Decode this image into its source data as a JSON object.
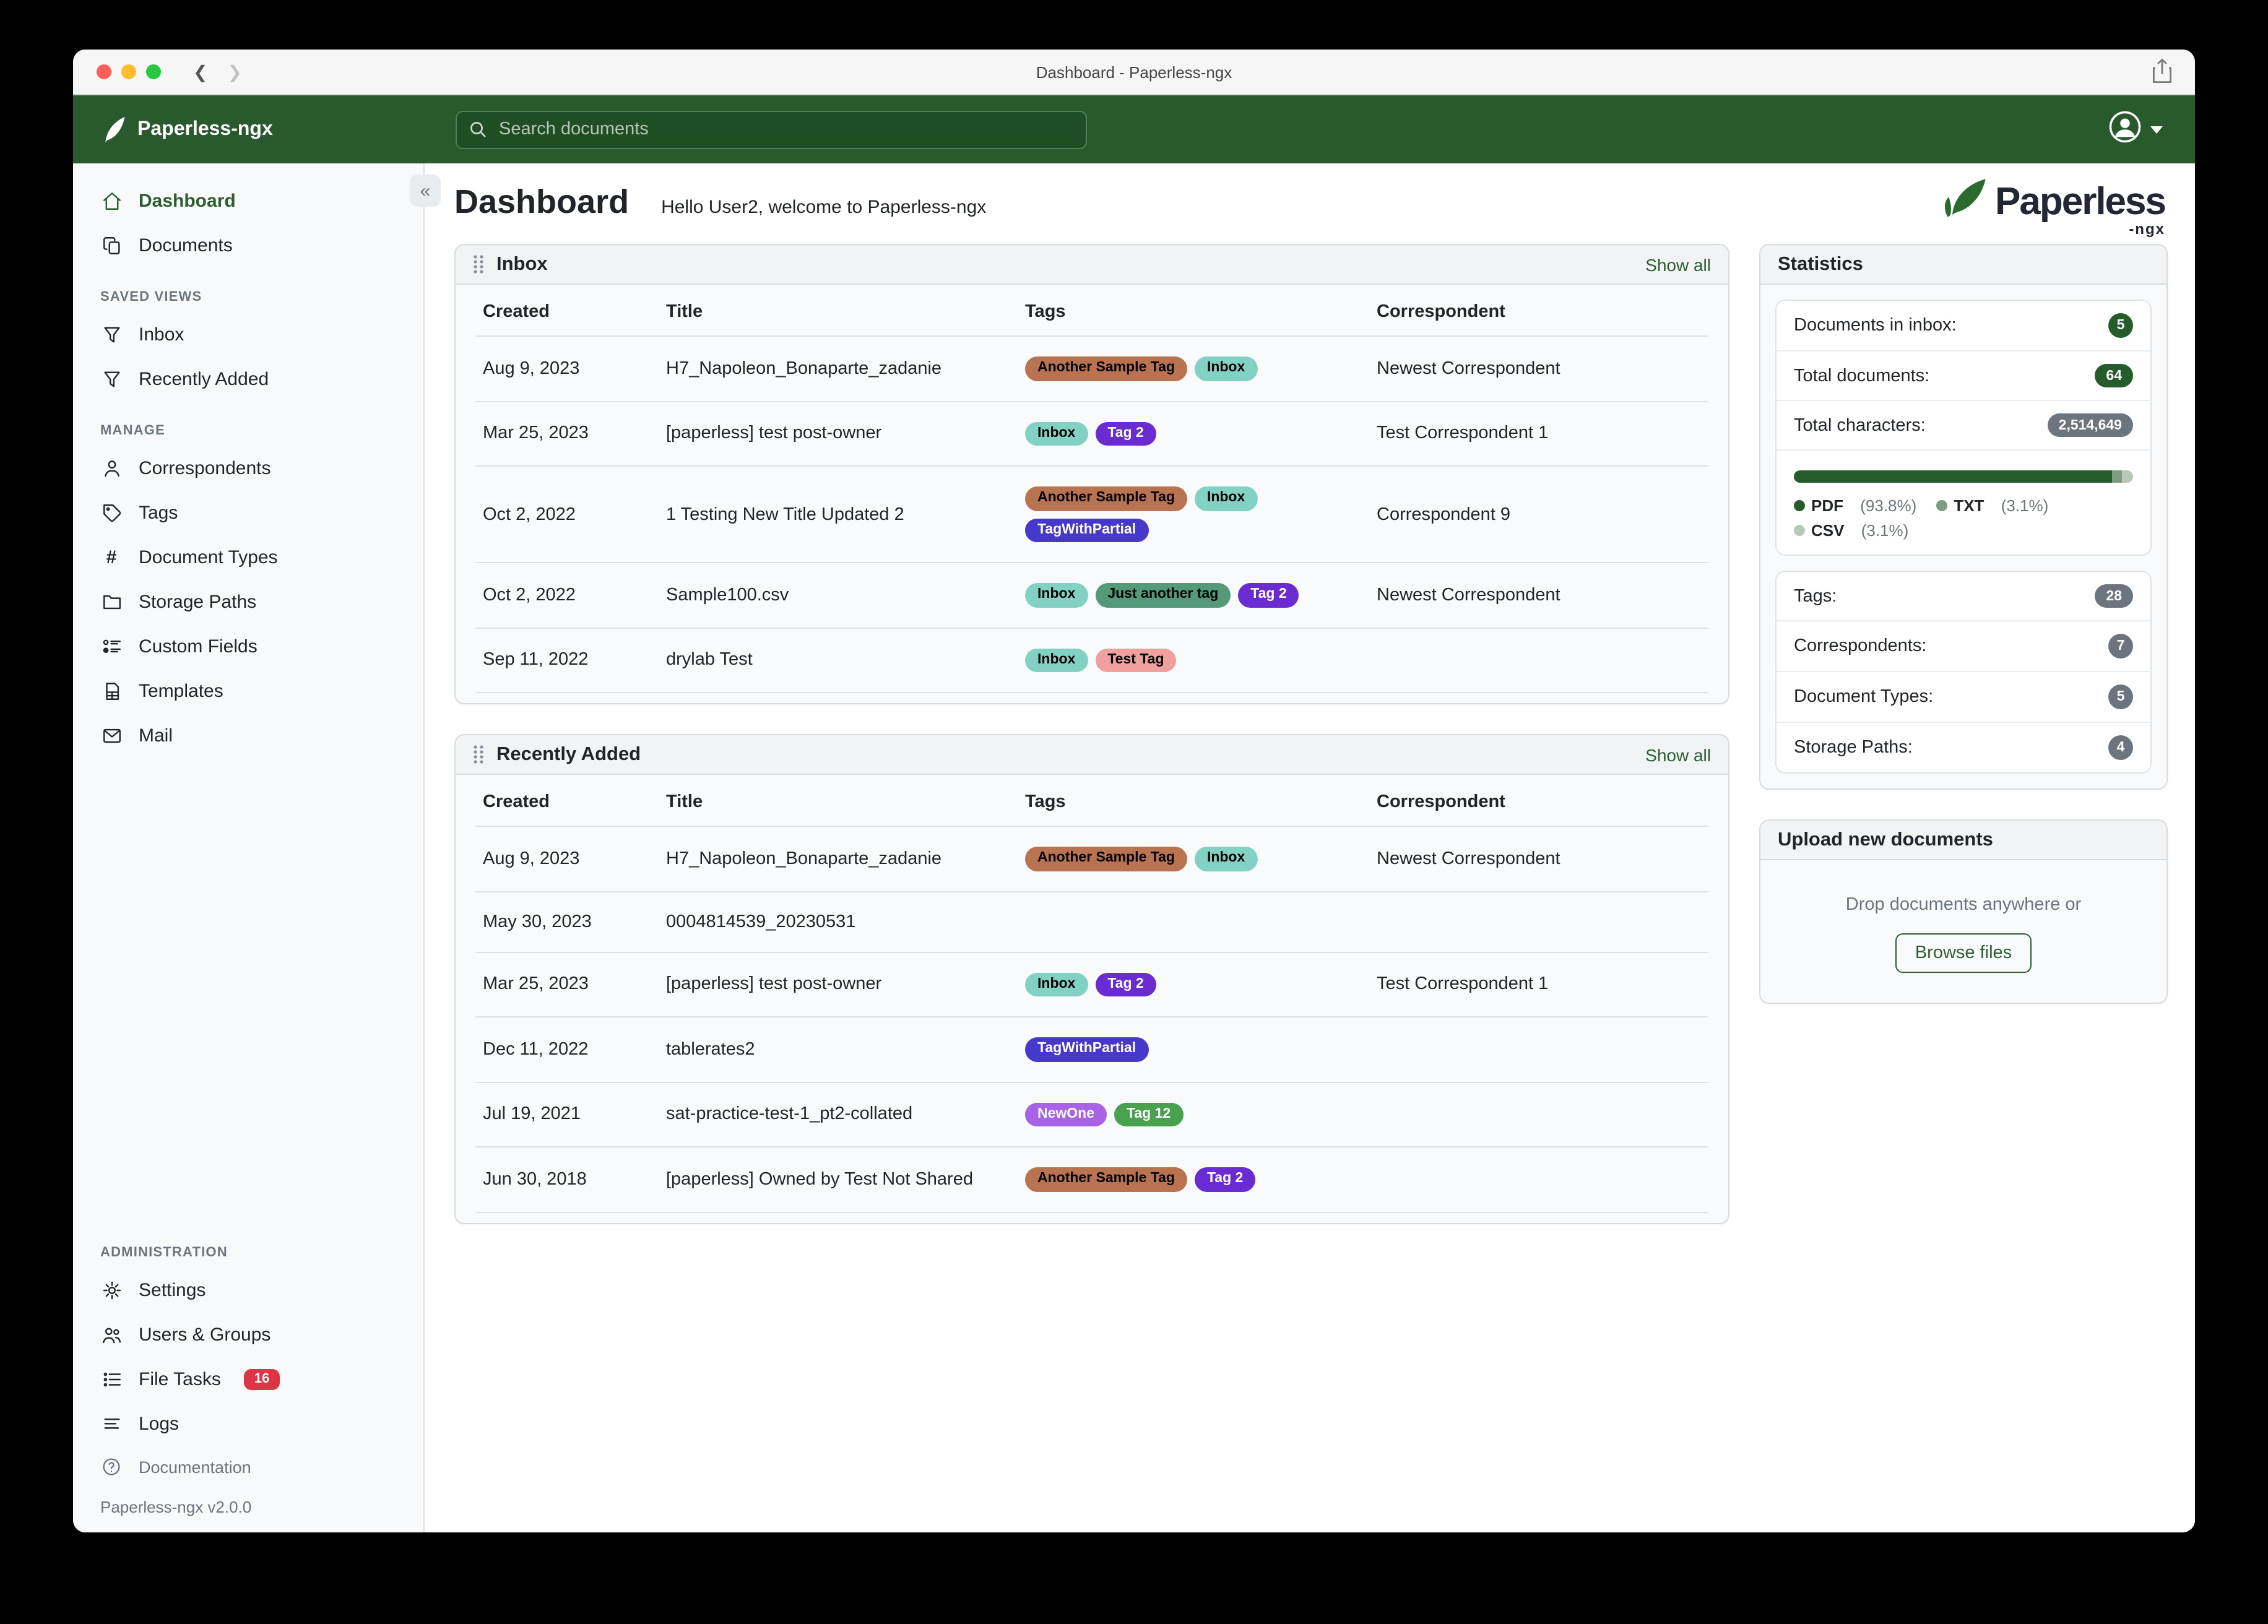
{
  "theme": {
    "navbar_green": "#285a2d",
    "accent": "#2c5e2e",
    "badge_green": "#265c2b",
    "badge_gray": "#6c757d",
    "badge_red": "#dc3545"
  },
  "window": {
    "title": "Dashboard - Paperless-ngx"
  },
  "navbar": {
    "brand": "Paperless-ngx",
    "search_placeholder": "Search documents"
  },
  "sidebar": {
    "primary": [
      {
        "label": "Dashboard",
        "icon": "home-icon",
        "active": true
      },
      {
        "label": "Documents",
        "icon": "documents-icon",
        "active": false
      }
    ],
    "sections": [
      {
        "label": "SAVED VIEWS",
        "push_bottom": false,
        "items": [
          {
            "label": "Inbox",
            "icon": "filter-icon"
          },
          {
            "label": "Recently Added",
            "icon": "filter-icon"
          }
        ]
      },
      {
        "label": "MANAGE",
        "push_bottom": false,
        "items": [
          {
            "label": "Correspondents",
            "icon": "person-icon"
          },
          {
            "label": "Tags",
            "icon": "tag-icon"
          },
          {
            "label": "Document Types",
            "icon": "hash-icon"
          },
          {
            "label": "Storage Paths",
            "icon": "folder-icon"
          },
          {
            "label": "Custom Fields",
            "icon": "custom-fields-icon"
          },
          {
            "label": "Templates",
            "icon": "template-icon"
          },
          {
            "label": "Mail",
            "icon": "mail-icon"
          }
        ]
      },
      {
        "label": "ADMINISTRATION",
        "push_bottom": true,
        "items": [
          {
            "label": "Settings",
            "icon": "gear-icon"
          },
          {
            "label": "Users & Groups",
            "icon": "users-icon"
          },
          {
            "label": "File Tasks",
            "icon": "tasks-icon",
            "badge": "16"
          },
          {
            "label": "Logs",
            "icon": "logs-icon"
          }
        ]
      }
    ],
    "footer": {
      "documentation": "Documentation",
      "version": "Paperless-ngx v2.0.0"
    }
  },
  "page": {
    "title": "Dashboard",
    "greeting": "Hello User2, welcome to Paperless-ngx",
    "logo_word": "Paperless",
    "logo_sub": "-ngx"
  },
  "tag_styles": {
    "Another Sample Tag": {
      "bg": "#b97350",
      "fg": "#000000"
    },
    "Inbox": {
      "bg": "#82d1c5",
      "fg": "#000000"
    },
    "Tag 2": {
      "bg": "#6b2bd2",
      "fg": "#ffffff"
    },
    "TagWithPartial": {
      "bg": "#4538ca",
      "fg": "#ffffff"
    },
    "Just another tag": {
      "bg": "#53997a",
      "fg": "#000000"
    },
    "Test Tag": {
      "bg": "#efa09f",
      "fg": "#000000"
    },
    "NewOne": {
      "bg": "#a763e6",
      "fg": "#ffffff"
    },
    "Tag 12": {
      "bg": "#48a14d",
      "fg": "#ffffff"
    }
  },
  "inbox_card": {
    "title": "Inbox",
    "show_all": "Show all",
    "columns": [
      "Created",
      "Title",
      "Tags",
      "Correspondent"
    ],
    "rows": [
      {
        "created": "Aug 9, 2023",
        "title": "H7_Napoleon_Bonaparte_zadanie",
        "tags": [
          "Another Sample Tag",
          "Inbox"
        ],
        "correspondent": "Newest Correspondent"
      },
      {
        "created": "Mar 25, 2023",
        "title": "[paperless] test post-owner",
        "tags": [
          "Inbox",
          "Tag 2"
        ],
        "correspondent": "Test Correspondent 1"
      },
      {
        "created": "Oct 2, 2022",
        "title": "1 Testing New Title Updated 2",
        "tags": [
          "Another Sample Tag",
          "Inbox",
          "TagWithPartial"
        ],
        "correspondent": "Correspondent 9"
      },
      {
        "created": "Oct 2, 2022",
        "title": "Sample100.csv",
        "tags": [
          "Inbox",
          "Just another tag",
          "Tag 2"
        ],
        "correspondent": "Newest Correspondent"
      },
      {
        "created": "Sep 11, 2022",
        "title": "drylab Test",
        "tags": [
          "Inbox",
          "Test Tag"
        ],
        "correspondent": ""
      }
    ]
  },
  "recent_card": {
    "title": "Recently Added",
    "show_all": "Show all",
    "columns": [
      "Created",
      "Title",
      "Tags",
      "Correspondent"
    ],
    "rows": [
      {
        "created": "Aug 9, 2023",
        "title": "H7_Napoleon_Bonaparte_zadanie",
        "tags": [
          "Another Sample Tag",
          "Inbox"
        ],
        "correspondent": "Newest Correspondent"
      },
      {
        "created": "May 30, 2023",
        "title": "0004814539_20230531",
        "tags": [],
        "correspondent": ""
      },
      {
        "created": "Mar 25, 2023",
        "title": "[paperless] test post-owner",
        "tags": [
          "Inbox",
          "Tag 2"
        ],
        "correspondent": "Test Correspondent 1"
      },
      {
        "created": "Dec 11, 2022",
        "title": "tablerates2",
        "tags": [
          "TagWithPartial"
        ],
        "correspondent": ""
      },
      {
        "created": "Jul 19, 2021",
        "title": "sat-practice-test-1_pt2-collated",
        "tags": [
          "NewOne",
          "Tag 12"
        ],
        "correspondent": ""
      },
      {
        "created": "Jun 30, 2018",
        "title": "[paperless] Owned by Test Not Shared",
        "tags": [
          "Another Sample Tag",
          "Tag 2"
        ],
        "correspondent": ""
      }
    ]
  },
  "stats": {
    "title": "Statistics",
    "groups": [
      {
        "chart": true,
        "items": [
          {
            "label": "Documents in inbox:",
            "value": "5",
            "badge": "green"
          },
          {
            "label": "Total documents:",
            "value": "64",
            "badge": "green"
          },
          {
            "label": "Total characters:",
            "value": "2,514,649",
            "badge": "gray"
          }
        ]
      },
      {
        "chart": false,
        "items": [
          {
            "label": "Tags:",
            "value": "28",
            "badge": "gray"
          },
          {
            "label": "Correspondents:",
            "value": "7",
            "badge": "gray"
          },
          {
            "label": "Document Types:",
            "value": "5",
            "badge": "gray"
          },
          {
            "label": "Storage Paths:",
            "value": "4",
            "badge": "gray"
          }
        ]
      }
    ],
    "chart": {
      "type": "bar",
      "segments": [
        {
          "label": "PDF",
          "pct": "93.8%",
          "value": 93.8,
          "color": "#265c2b"
        },
        {
          "label": "TXT",
          "pct": "3.1%",
          "value": 3.1,
          "color": "#7f9b80"
        },
        {
          "label": "CSV",
          "pct": "3.1%",
          "value": 3.1,
          "color": "#b8c9b7"
        }
      ]
    }
  },
  "upload_card": {
    "title": "Upload new documents",
    "drop_text": "Drop documents anywhere or",
    "button": "Browse files"
  }
}
